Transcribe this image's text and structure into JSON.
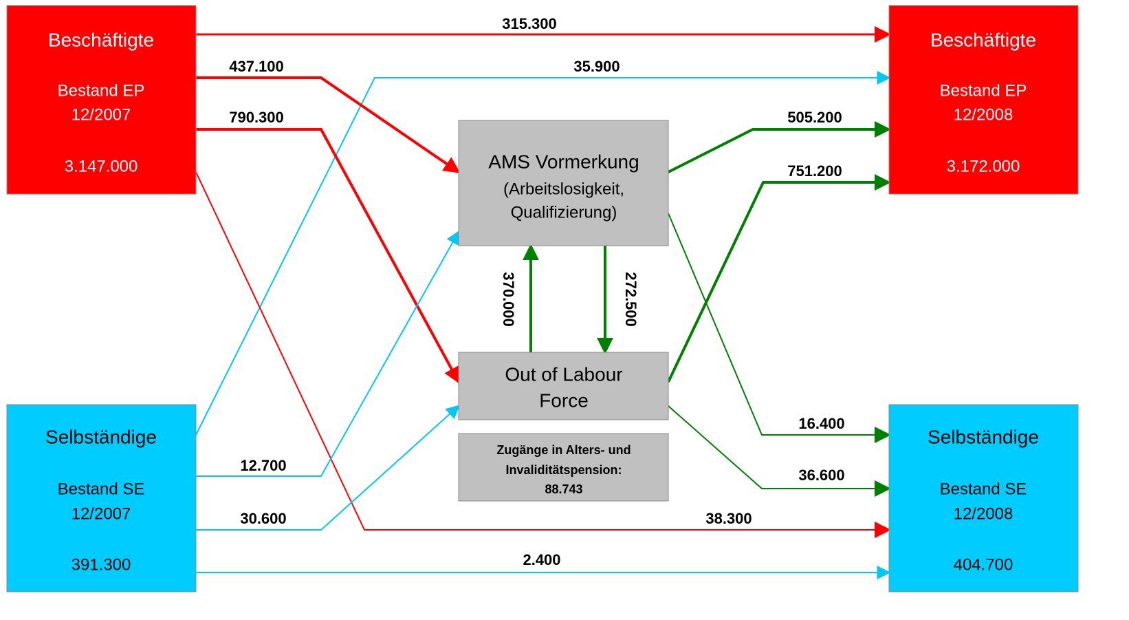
{
  "nodes": [
    {
      "title": "Beschäftigte",
      "lines": [
        "Bestand EP",
        "12/2007",
        "3.147.000"
      ]
    },
    {
      "title": "Selbständige",
      "lines": [
        "Bestand SE",
        "12/2007",
        "391.300"
      ]
    },
    {
      "title": "Beschäftigte",
      "lines": [
        "Bestand EP",
        "12/2008",
        "3.172.000"
      ]
    },
    {
      "title": "Selbständige",
      "lines": [
        "Bestand SE",
        "12/2008",
        "404.700"
      ]
    },
    {
      "title": "AMS Vormerkung",
      "lines": [
        "(Arbeitslosigkeit,",
        "Qualifizierung)"
      ]
    },
    {
      "title": "Out of Labour",
      "lines": [
        "Force"
      ]
    },
    {
      "title": "Zugänge in Alters- und",
      "lines": [
        "Invaliditätspension:",
        "88.743"
      ]
    }
  ],
  "flows": [
    {
      "label": "315.300"
    },
    {
      "label": "35.900"
    },
    {
      "label": "437.100"
    },
    {
      "label": "790.300"
    },
    {
      "label": "38.300"
    },
    {
      "label": "12.700"
    },
    {
      "label": "30.600"
    },
    {
      "label": "2.400"
    },
    {
      "label": "505.200"
    },
    {
      "label": "751.200"
    },
    {
      "label": "16.400"
    },
    {
      "label": "36.600"
    },
    {
      "label": "370.000"
    },
    {
      "label": "272.500"
    }
  ]
}
